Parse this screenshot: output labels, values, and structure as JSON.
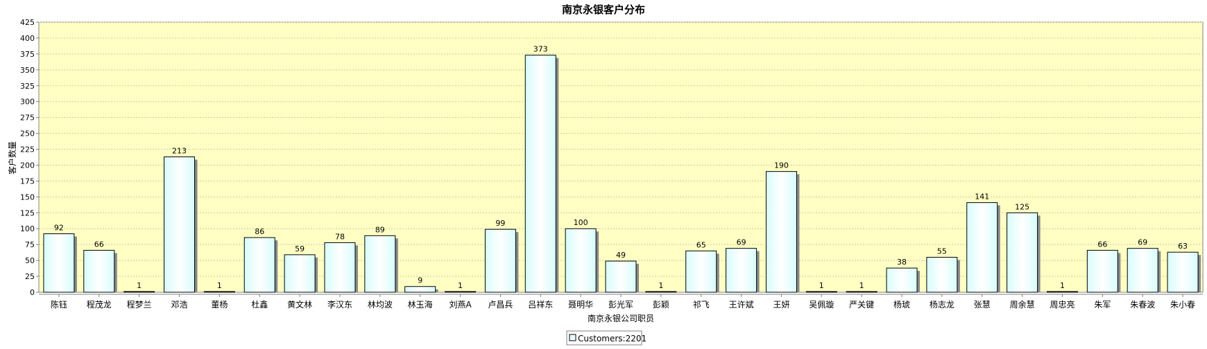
{
  "chart_data": {
    "type": "bar",
    "title": "南京永银客户分布",
    "xlabel": "南京永银公司职员",
    "ylabel": "客户数量",
    "ylim": [
      0,
      425
    ],
    "ytick_step": 25,
    "grid": true,
    "legend_position": "bottom-center",
    "categories": [
      "陈钰",
      "程茂龙",
      "程梦兰",
      "邓浩",
      "董杨",
      "杜鑫",
      "黄文林",
      "李汉东",
      "林均波",
      "林玉海",
      "刘燕A",
      "卢昌兵",
      "吕祥东",
      "聂明华",
      "彭光军",
      "彭颖",
      "祁飞",
      "王许斌",
      "王妍",
      "吴佩璇",
      "严关键",
      "杨琥",
      "杨志龙",
      "张慧",
      "周余慧",
      "周忠亮",
      "朱军",
      "朱春波",
      "朱小春"
    ],
    "series": [
      {
        "name": "Customers:2201",
        "values": [
          92,
          66,
          1,
          213,
          1,
          86,
          59,
          78,
          89,
          9,
          1,
          99,
          373,
          100,
          49,
          1,
          65,
          69,
          190,
          1,
          1,
          38,
          55,
          141,
          125,
          1,
          66,
          69,
          63
        ]
      }
    ],
    "colors": {
      "plot_background": "#ffffc4",
      "bar_fill_edge": "#d8fcfc",
      "bar_fill_center": "#ffffff",
      "bar_stroke": "#000000",
      "bar_shadow": "#8a8a8a",
      "grid": "#c8c8a0"
    }
  }
}
